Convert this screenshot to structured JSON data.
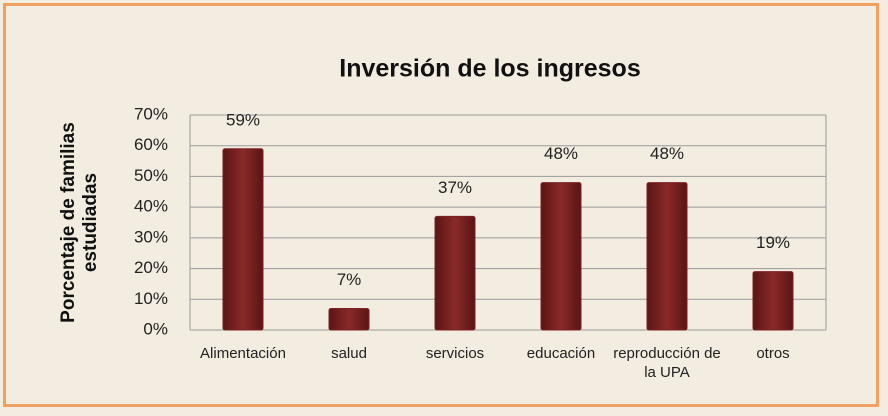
{
  "chart_data": {
    "type": "bar",
    "title": "Inversión de los ingresos",
    "y_label": "Porcentaje de familias estudiadas",
    "categories": [
      "Alimentación",
      "salud",
      "servicios",
      "educación",
      "reproducción de la UPA",
      "otros"
    ],
    "values": [
      59,
      7,
      37,
      48,
      48,
      19
    ],
    "value_labels": [
      "59%",
      "7%",
      "37%",
      "48%",
      "48%",
      "19%"
    ],
    "color": "#7b2222",
    "ylim": [
      0,
      70
    ],
    "yticks": [
      {
        "value": 0,
        "label": "0%"
      },
      {
        "value": 10,
        "label": "10%"
      },
      {
        "value": 20,
        "label": "20%"
      },
      {
        "value": 30,
        "label": "30%"
      },
      {
        "value": 40,
        "label": "40%"
      },
      {
        "value": 50,
        "label": "50%"
      },
      {
        "value": 60,
        "label": "60%"
      },
      {
        "value": 70,
        "label": "70%"
      }
    ],
    "grid": true
  }
}
